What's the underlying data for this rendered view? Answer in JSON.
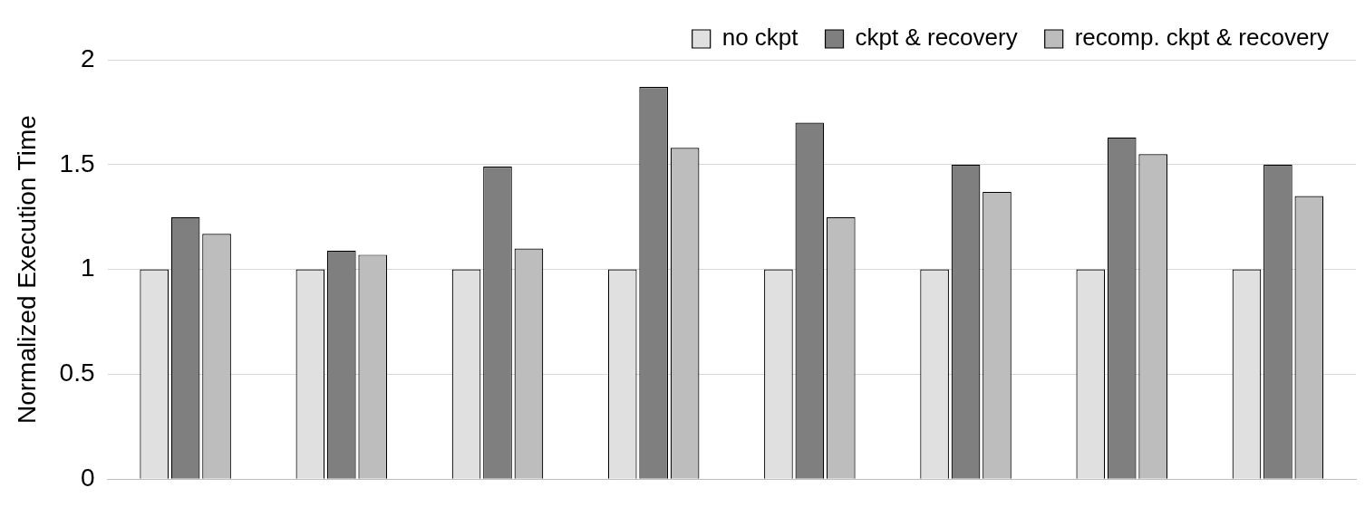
{
  "chart_data": {
    "type": "bar",
    "ylabel": "Normalized Execution Time",
    "categories": [
      null,
      null,
      null,
      null,
      null,
      null,
      null,
      null
    ],
    "series": [
      {
        "name": "no ckpt",
        "color": "#e0e0e0",
        "values": [
          1,
          1,
          1,
          1,
          1,
          1,
          1,
          1
        ]
      },
      {
        "name": "ckpt & recovery",
        "color": "#7f7f7f",
        "values": [
          1.25,
          1.09,
          1.49,
          1.87,
          1.7,
          1.5,
          1.63,
          1.5
        ]
      },
      {
        "name": "recomp. ckpt & recovery",
        "color": "#bdbdbd",
        "values": [
          1.17,
          1.07,
          1.1,
          1.58,
          1.25,
          1.37,
          1.55,
          1.35
        ]
      }
    ],
    "ylim": [
      0,
      2
    ],
    "yticks": [
      0,
      0.5,
      1,
      1.5,
      2
    ],
    "grid": "y",
    "legend": "top right"
  }
}
